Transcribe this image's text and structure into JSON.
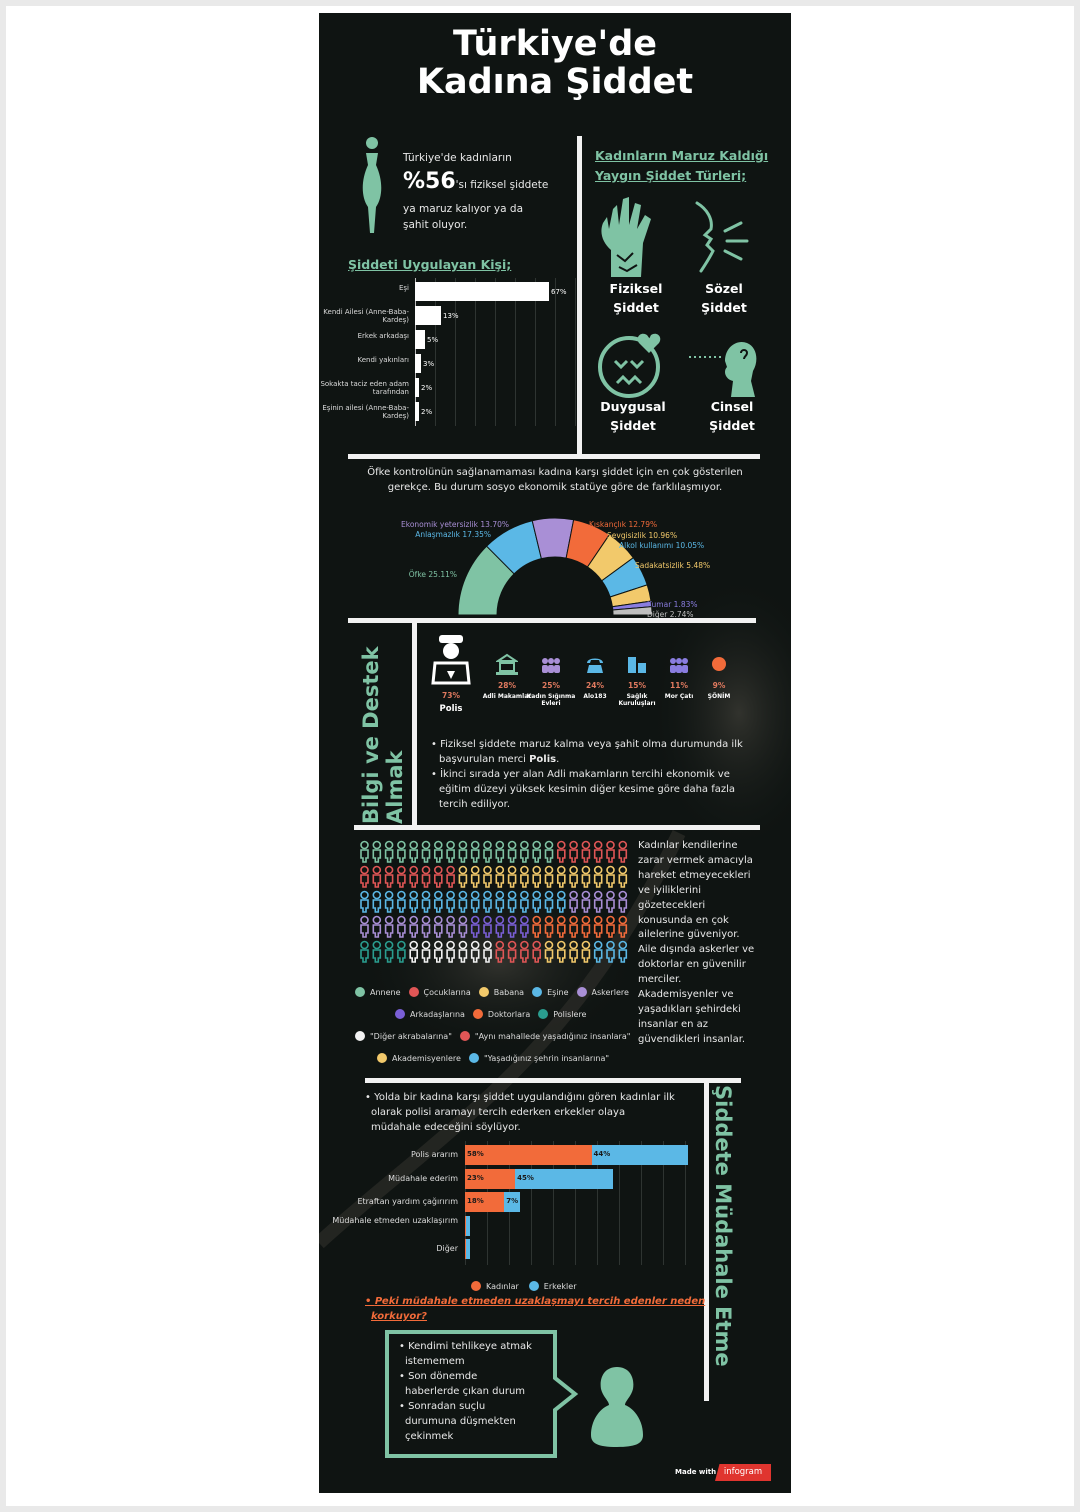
{
  "title_line1": "Türkiye'de",
  "title_line2": "Kadına Şiddet",
  "stat": {
    "line1": "Türkiye'de kadınların",
    "big": "%56",
    "after_big": "'sı fiziksel şiddete",
    "line3": "ya maruz kalıyor ya da",
    "line4": "şahit oluyor."
  },
  "violence_types": {
    "heading_line1": "Kadınların Maruz Kaldığı",
    "heading_line2": "Yaygın Şiddet Türleri;",
    "items": [
      {
        "line1": "Fiziksel",
        "line2": "Şiddet",
        "icon": "zombie-hand-icon"
      },
      {
        "line1": "Sözel",
        "line2": "Şiddet",
        "icon": "shouting-face-icon"
      },
      {
        "line1": "Duygusal",
        "line2": "Şiddet",
        "icon": "sad-face-broken-heart-icon"
      },
      {
        "line1": "Cinsel",
        "line2": "Şiddet",
        "icon": "head-silhouette-icon"
      }
    ]
  },
  "perpetrator_heading": "Şiddeti Uygulayan Kişi;",
  "cause_text_line1": "Öfke kontrolünün sağlanamaması kadına karşı şiddet için en çok gösterilen",
  "cause_text_line2": "gerekçe. Bu durum sosyo ekonomik statüye göre de farklılaşmıyor.",
  "support": {
    "vertical_title_line1": "Bilgi ve Destek",
    "vertical_title_line2": "Almak",
    "items": [
      {
        "pct": "73%",
        "label": "Polis",
        "icon": "police-officer-icon",
        "color": "#ffffff"
      },
      {
        "pct": "28%",
        "label": "Adli Makamlar",
        "icon": "courthouse-icon",
        "color": "#7fc3a4"
      },
      {
        "pct": "25%",
        "label": "Kadın Sığınma Evleri",
        "icon": "women-group-icon",
        "color": "#a98fd6"
      },
      {
        "pct": "24%",
        "label": "Alo183",
        "icon": "telephone-icon",
        "color": "#5bb8e6"
      },
      {
        "pct": "15%",
        "label": "Sağlık Kuruluşları",
        "icon": "hospital-icon",
        "color": "#5bb8e6"
      },
      {
        "pct": "11%",
        "label": "Mor Çatı",
        "icon": "people-icon",
        "color": "#8a7de0"
      },
      {
        "pct": "9%",
        "label": "ŞÖNİM",
        "icon": "orange-dot-icon",
        "color": "#f26b3a"
      }
    ],
    "bullet1_a": "Fiziksel şiddete maruz kalma veya şahit olma durumunda ilk",
    "bullet1_b": "başvurulan merci ",
    "bullet1_bold": "Polis",
    "bullet1_end": ".",
    "bullet2_a": "İkinci sırada yer alan Adli makamların tercihi ekonomik ve",
    "bullet2_b": "eğitim düzeyi yüksek kesimin diğer kesime göre daha fazla",
    "bullet2_c": "tercih ediliyor."
  },
  "trust": {
    "text_lines": [
      "Kadınlar kendilerine",
      "zarar vermek amacıyla",
      "hareket etmeyecekleri",
      "ve iyiliklerini",
      "gözetecekleri",
      "konusunda en çok",
      "ailelerine güveniyor.",
      "Aile dışında askerler ve",
      "doktorlar en güvenilir",
      "merciler.",
      "Akademisyenler ve",
      "yaşadıkları şehirdeki",
      "insanlar en az",
      "güvendikleri insanlar."
    ],
    "legend": [
      {
        "label": "Annene",
        "color": "#7fc3a4"
      },
      {
        "label": "Çocuklarına",
        "color": "#e05656"
      },
      {
        "label": "Babana",
        "color": "#f2c96b"
      },
      {
        "label": "Eşine",
        "color": "#5bb8e6"
      },
      {
        "label": "Askerlere",
        "color": "#a98fd6"
      },
      {
        "label": "Arkadaşlarına",
        "color": "#7a5fd6"
      },
      {
        "label": "Doktorlara",
        "color": "#f26b3a"
      },
      {
        "label": "Polislere",
        "color": "#2a9d8f"
      },
      {
        "label": "\"Diğer akrabalarına\"",
        "color": "#f2f2f2"
      },
      {
        "label": "\"Aynı mahallede yaşadığınız insanlara\"",
        "color": "#e05656"
      },
      {
        "label": "Akademisyenlere",
        "color": "#f2c96b"
      },
      {
        "label": "\"Yaşadığınız şehrin insanlarına\"",
        "color": "#5bb8e6"
      }
    ]
  },
  "intervene": {
    "vertical_title": "Şiddete Müdahale Etme",
    "text_line1": "Yolda bir kadına karşı şiddet uygulandığını gören kadınlar ilk",
    "text_line2": "olarak polisi aramayı tercih ederken erkekler olaya",
    "text_line3": "müdahale edeceğini söylüyor.",
    "question_line1": "Peki müdahale etmeden uzaklaşmayı tercih edenler neden",
    "question_line2": "korkuyor?",
    "reasons": [
      [
        "Kendimi tehlikeye atmak",
        "istememem"
      ],
      [
        "Son dönemde",
        "haberlerde çıkan durum"
      ],
      [
        "Sonradan suçlu",
        "durumuna düşmekten",
        "çekinmek"
      ]
    ]
  },
  "footer": {
    "made_with": "Made with",
    "brand": "infogram"
  },
  "chart_data": [
    {
      "type": "bar",
      "orientation": "horizontal",
      "title": "Şiddeti Uygulayan Kişi;",
      "categories": [
        "Eşi",
        "Kendi Ailesi (Anne-Baba-Kardeş)",
        "Erkek arkadaşı",
        "Kendi yakınları",
        "Sokakta taciz eden adam tarafından",
        "Eşinin ailesi (Anne-Baba-Kardeş)"
      ],
      "values": [
        67,
        13,
        5,
        3,
        2,
        2
      ],
      "value_labels": [
        "67%",
        "13%",
        "5%",
        "3%",
        "2%",
        "2%"
      ],
      "xlim": [
        0,
        80
      ]
    },
    {
      "type": "pie",
      "variant": "semi-donut",
      "categories": [
        "Öfke",
        "Anlaşmazlık",
        "Ekonomik yetersizlik",
        "Kıskançlık",
        "Sevgisizlik",
        "Alkol kullanımı",
        "Sadakatsizlik",
        "Kumar",
        "Diğer"
      ],
      "values": [
        25.11,
        17.35,
        13.7,
        12.79,
        10.96,
        10.05,
        5.48,
        1.83,
        2.74
      ],
      "labels": [
        "Öfke 25.11%",
        "Anlaşmazlık 17.35%",
        "Ekonomik yetersizlik 13.70%",
        "Kıskançlık 12.79%",
        "Sevgisizlik 10.96%",
        "Alkol kullanımı 10.05%",
        "Sadakatsizlik 5.48%",
        "Kumar 1.83%",
        "Diğer 2.74%"
      ],
      "colors": [
        "#7fc3a4",
        "#5bb8e6",
        "#a98fd6",
        "#f26b3a",
        "#f2c96b",
        "#5bb8e6",
        "#f2c96b",
        "#8a7de0",
        "#bfbfbf"
      ]
    },
    {
      "type": "bar",
      "orientation": "horizontal",
      "stacked": true,
      "categories": [
        "Polis ararım",
        "Müdahale ederim",
        "Etraftan yardım çağırırım",
        "Müdahale etmeden uzaklaşırım",
        "Diğer"
      ],
      "series": [
        {
          "name": "Kadınlar",
          "values": [
            58,
            23,
            18,
            0.5,
            0.3
          ],
          "labels": [
            "58%",
            "23%",
            "18%",
            "",
            ""
          ],
          "color": "#f26b3a"
        },
        {
          "name": "Erkekler",
          "values": [
            44,
            45,
            7,
            2,
            2
          ],
          "labels": [
            "44%",
            "45%",
            "7%",
            "",
            ""
          ],
          "color": "#5bb8e6"
        }
      ],
      "xlim": [
        0,
        110
      ]
    }
  ]
}
